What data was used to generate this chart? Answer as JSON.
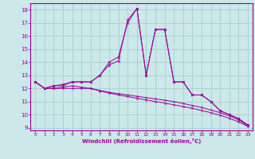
{
  "xlabel": "Windchill (Refroidissement éolien,°C)",
  "background_color": "#cce8e8",
  "grid_color": "#99cccc",
  "line_color": "#990099",
  "xlim": [
    -0.5,
    23.5
  ],
  "ylim": [
    8.8,
    18.5
  ],
  "yticks": [
    9,
    10,
    11,
    12,
    13,
    14,
    15,
    16,
    17,
    18
  ],
  "xticks": [
    0,
    1,
    2,
    3,
    4,
    5,
    6,
    7,
    8,
    9,
    10,
    11,
    12,
    13,
    14,
    15,
    16,
    17,
    18,
    19,
    20,
    21,
    22,
    23
  ],
  "line1_x": [
    0,
    1,
    2,
    3,
    4,
    5,
    6,
    7,
    8,
    9,
    10,
    11,
    12,
    13,
    14,
    15,
    16,
    17,
    18,
    19,
    20,
    21,
    22,
    23
  ],
  "line1_y": [
    12.5,
    12.0,
    12.0,
    12.1,
    12.2,
    12.1,
    12.0,
    11.85,
    11.7,
    11.6,
    11.5,
    11.4,
    11.3,
    11.2,
    11.1,
    11.0,
    10.85,
    10.7,
    10.55,
    10.35,
    10.15,
    9.9,
    9.6,
    9.15
  ],
  "line2_x": [
    0,
    1,
    2,
    3,
    4,
    5,
    6,
    7,
    8,
    9,
    10,
    11,
    12,
    13,
    14,
    15,
    16,
    17,
    18,
    19,
    20,
    21,
    22,
    23
  ],
  "line2_y": [
    12.5,
    12.0,
    12.0,
    12.0,
    12.0,
    12.0,
    12.0,
    11.8,
    11.65,
    11.5,
    11.38,
    11.25,
    11.12,
    11.0,
    10.88,
    10.75,
    10.62,
    10.48,
    10.32,
    10.15,
    9.95,
    9.72,
    9.45,
    9.1
  ],
  "line3_x": [
    0,
    1,
    2,
    3,
    4,
    5,
    6,
    7,
    8,
    9,
    10,
    11,
    12,
    13,
    14,
    15,
    16,
    17,
    18,
    19,
    20,
    21,
    22,
    23
  ],
  "line3_y": [
    12.5,
    12.0,
    12.2,
    12.2,
    12.5,
    12.5,
    12.5,
    13.0,
    13.8,
    14.1,
    17.2,
    18.1,
    13.0,
    16.5,
    16.5,
    12.5,
    12.5,
    11.5,
    11.5,
    11.0,
    10.3,
    10.0,
    9.7,
    9.2
  ],
  "line4_x": [
    0,
    1,
    2,
    3,
    4,
    5,
    6,
    7,
    8,
    9,
    10,
    11,
    12,
    13,
    14,
    15,
    16,
    17,
    18,
    19,
    20,
    21,
    22,
    23
  ],
  "line4_y": [
    12.5,
    12.0,
    12.2,
    12.3,
    12.5,
    12.5,
    12.5,
    13.0,
    14.0,
    14.4,
    17.0,
    18.1,
    13.0,
    16.5,
    16.5,
    12.5,
    12.5,
    11.5,
    11.5,
    11.0,
    10.3,
    10.0,
    9.7,
    9.2
  ]
}
